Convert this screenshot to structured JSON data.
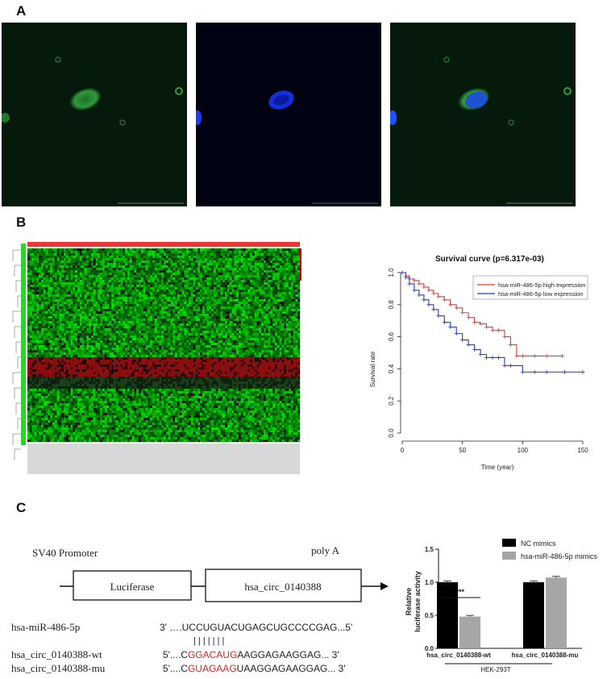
{
  "panels": {
    "a": "A",
    "b": "B",
    "c": "C"
  },
  "colors": {
    "green_channel": "#2e7d32",
    "blue_channel": "#1e3cff",
    "high_expression": "#e53935",
    "low_expression": "#1e3cd8",
    "mismatch_red": "#e02020"
  },
  "survival_chart": {
    "title": "Survival curve (p=6.317e-03)",
    "xlabel": "Time (year)",
    "ylabel": "Survival rate",
    "legend_high": "hsa-miR-486-5p high expression",
    "legend_low": "hsa-miR-486-5p low expression"
  },
  "construct": {
    "promoter": "SV40 Promoter",
    "luciferase": "Luciferase",
    "circ": "hsa_circ_0140388",
    "polya": "poly A"
  },
  "sequences": {
    "mirna_name": "hsa-miR-486-5p",
    "mirna_seq": "3' ….UCCUGUACUGAGCUGCCCCGAG...5'",
    "pairing": "| | | | | | |",
    "wt_name": "hsa_circ_0140388-wt",
    "wt_prefix": "5'....C",
    "wt_red": "GGACAUG",
    "wt_suffix": "AAGGAGAAGGAG... 3'",
    "mu_name": "hsa_circ_0140388-mu",
    "mu_prefix": "5'....C",
    "mu_red": "GUAGAAG",
    "mu_suffix": "UAAGGAGAAGGAG... 3'"
  },
  "luciferase_chart": {
    "legend_nc": "NC mimics",
    "legend_mimic": "hsa-miR-486-5p mimics",
    "ylabel_line1": "Relative",
    "ylabel_line2": "luciferase activity",
    "significance": "****",
    "cell_line": "HEK-293T"
  },
  "chart_data": [
    {
      "type": "line",
      "title": "Survival curve (p=6.317e-03)",
      "xlabel": "Time (year)",
      "ylabel": "Survival rate",
      "xlim": [
        0,
        150
      ],
      "ylim": [
        0,
        1.0
      ],
      "xticks": [
        0,
        50,
        100,
        150
      ],
      "yticks": [
        0.0,
        0.2,
        0.4,
        0.6,
        0.8,
        1.0
      ],
      "legend_position": "top-right",
      "series": [
        {
          "name": "hsa-miR-486-5p high expression",
          "color": "#e53935",
          "x": [
            0,
            3,
            6,
            10,
            14,
            18,
            22,
            26,
            30,
            35,
            40,
            45,
            50,
            55,
            60,
            65,
            70,
            75,
            80,
            85,
            90,
            95,
            100,
            110,
            120,
            133
          ],
          "y": [
            1.0,
            0.98,
            0.96,
            0.95,
            0.93,
            0.91,
            0.89,
            0.87,
            0.85,
            0.83,
            0.8,
            0.78,
            0.75,
            0.72,
            0.69,
            0.68,
            0.66,
            0.64,
            0.64,
            0.6,
            0.55,
            0.48,
            0.48,
            0.48,
            0.48,
            0.48
          ]
        },
        {
          "name": "hsa-miR-486-5p low expression",
          "color": "#1e3cd8",
          "x": [
            0,
            3,
            6,
            10,
            14,
            18,
            22,
            26,
            30,
            35,
            40,
            45,
            50,
            55,
            60,
            65,
            70,
            75,
            80,
            85,
            90,
            100,
            110,
            120,
            135,
            150
          ],
          "y": [
            1.0,
            0.97,
            0.93,
            0.89,
            0.86,
            0.83,
            0.8,
            0.77,
            0.73,
            0.69,
            0.66,
            0.62,
            0.58,
            0.55,
            0.52,
            0.49,
            0.47,
            0.47,
            0.47,
            0.42,
            0.42,
            0.38,
            0.38,
            0.38,
            0.38,
            0.38
          ]
        }
      ]
    },
    {
      "type": "bar",
      "ylabel": "Relative luciferase activity",
      "ylim": [
        0,
        1.5
      ],
      "yticks": [
        0.0,
        0.5,
        1.0,
        1.5
      ],
      "categories": [
        "hsa_circ_0140388-wt",
        "hsa_circ_0140388-mu"
      ],
      "group_label": "HEK-293T",
      "legend_position": "top",
      "series": [
        {
          "name": "NC mimics",
          "color": "#000000",
          "values": [
            1.0,
            1.0
          ]
        },
        {
          "name": "hsa-miR-486-5p mimics",
          "color": "#a6a6a6",
          "values": [
            0.48,
            1.07
          ]
        }
      ]
    }
  ]
}
